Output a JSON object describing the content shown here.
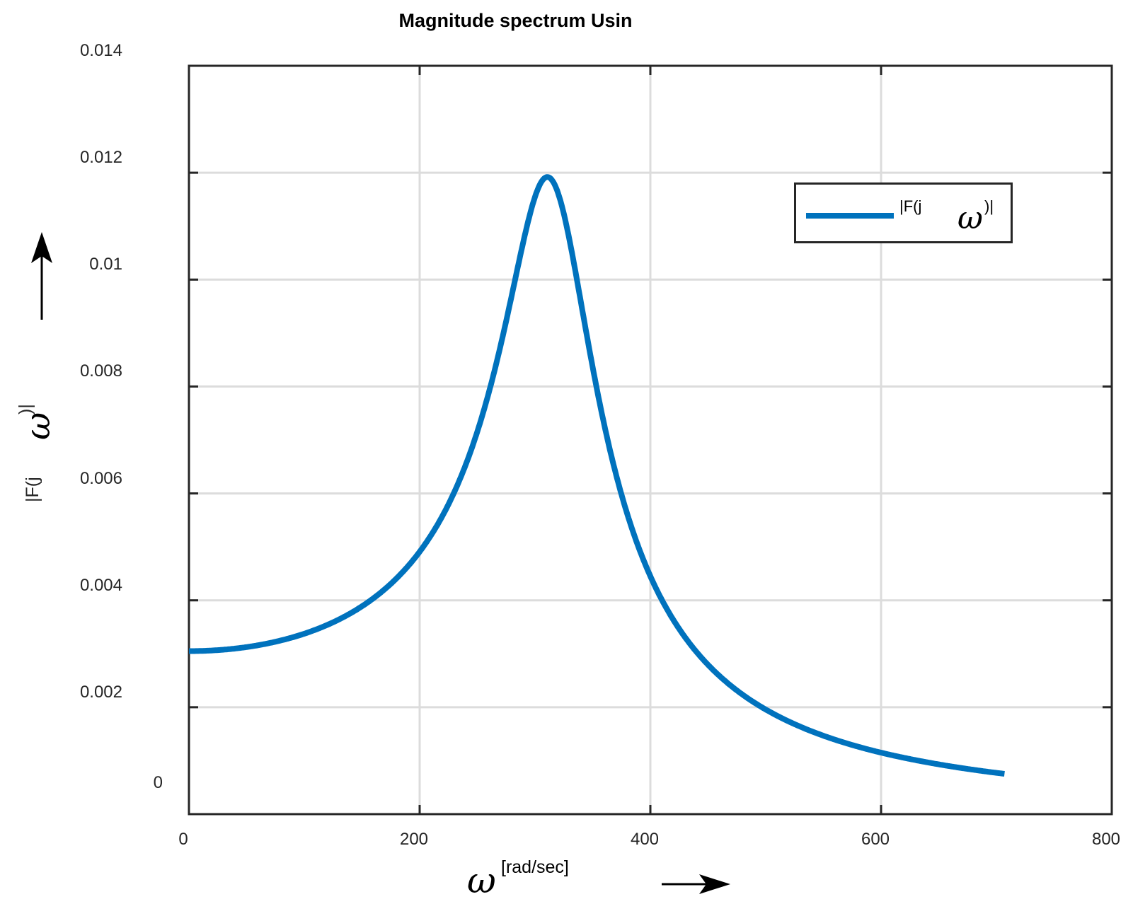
{
  "chart_data": {
    "type": "line",
    "title": "Magnitude spectrum Usin",
    "xlabel": "ω [rad/sec]",
    "ylabel": "|F(j ω)|",
    "xlim": [
      0,
      800
    ],
    "ylim": [
      0,
      0.014
    ],
    "x_ticks": [
      "0",
      "200",
      "400",
      "600",
      "800"
    ],
    "y_ticks": [
      "0",
      "0.002",
      "0.004",
      "0.008",
      "0.006",
      "0.01",
      "0.012",
      "0.014"
    ],
    "grid": true,
    "legend_position": "upper right",
    "series": [
      {
        "name": "|F(j ω)|",
        "color": "#0072bd",
        "x": [
          0,
          50,
          100,
          150,
          200,
          250,
          280,
          300,
          316,
          330,
          350,
          380,
          400,
          450,
          500,
          550,
          600,
          650,
          707
        ],
        "y": [
          0.00305,
          0.00313,
          0.0034,
          0.00394,
          0.00497,
          0.00701,
          0.00912,
          0.01107,
          0.01182,
          0.01128,
          0.00902,
          0.00599,
          0.00466,
          0.00289,
          0.00199,
          0.00147,
          0.00113,
          0.00091,
          0.00073
        ]
      }
    ],
    "annotations": [
      "upward arrow beside y-axis label",
      "rightward arrow beside x-axis label"
    ]
  },
  "figure": {
    "title": "Magnitude spectrum Usin",
    "y_tick_labels": [
      {
        "value": 0.014,
        "label": "0.014"
      },
      {
        "value": 0.012,
        "label": "0.012"
      },
      {
        "value": 0.01,
        "label": "0.01"
      },
      {
        "value": 0.008,
        "label": "0.008"
      },
      {
        "value": 0.006,
        "label": "0.006"
      },
      {
        "value": 0.004,
        "label": "0.004"
      },
      {
        "value": 0.002,
        "label": "0.002"
      },
      {
        "value": 0.0,
        "label": "0"
      }
    ],
    "x_tick_labels": [
      {
        "value": 0,
        "label": "0"
      },
      {
        "value": 200,
        "label": "200"
      },
      {
        "value": 400,
        "label": "400"
      },
      {
        "value": 600,
        "label": "600"
      },
      {
        "value": 800,
        "label": "800"
      }
    ],
    "legend": {
      "prefix": "|F(j",
      "omega": "ω",
      "suffix": ")|"
    },
    "ylabel": {
      "prefix": "|F(j",
      "omega": "ω",
      "suffix": ")|"
    },
    "xlabel": {
      "omega": "ω",
      "unit": "[rad/sec]"
    },
    "line_color": "#0072bd"
  }
}
